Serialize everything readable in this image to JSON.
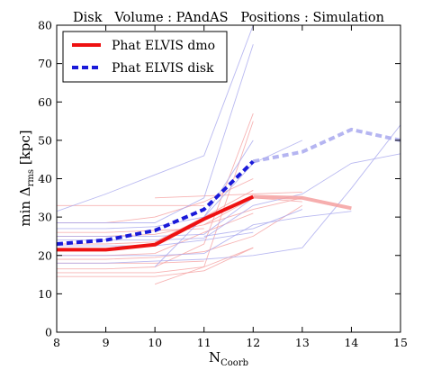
{
  "chart_data": {
    "type": "line",
    "title": "Disk   Volume : PAndAS   Positions : Simulation",
    "xlabel": "N",
    "xlabel_sub": "Coorb",
    "ylabel": "min Δ",
    "ylabel_sub": "rms",
    "ylabel_unit": " [kpc]",
    "xlim": [
      8,
      15
    ],
    "ylim": [
      0,
      80
    ],
    "xticks": [
      8,
      9,
      10,
      11,
      12,
      13,
      14,
      15
    ],
    "yticks": [
      0,
      10,
      20,
      30,
      40,
      50,
      60,
      70,
      80
    ],
    "grid": false,
    "legend_position": "top-left",
    "colors": {
      "dmo": "#ee1111",
      "disk": "#1a1ad9",
      "dmo_faint": "#f5a0a0",
      "disk_faint": "#a8a8ee",
      "axes": "#000000"
    },
    "series": [
      {
        "name": "Phat ELVIS dmo",
        "style": "solid",
        "x": [
          8,
          9,
          10,
          11,
          12,
          13,
          14
        ],
        "y": [
          21.5,
          21.5,
          22.8,
          29.5,
          35.3,
          35.0,
          32.3
        ],
        "strong_until": 12
      },
      {
        "name": "Phat ELVIS disk",
        "style": "dashed",
        "x": [
          8,
          9,
          10,
          11,
          12,
          13,
          14,
          15
        ],
        "y": [
          23.0,
          24.0,
          26.5,
          32.0,
          44.5,
          47.0,
          52.8,
          50.0
        ],
        "strong_until": 12
      }
    ],
    "background_lines": {
      "red": [
        {
          "x": [
            8,
            9,
            10,
            11
          ],
          "y": [
            33,
            33,
            33,
            33
          ]
        },
        {
          "x": [
            8,
            9,
            10,
            11,
            12
          ],
          "y": [
            28.5,
            28.5,
            30,
            34,
            40
          ]
        },
        {
          "x": [
            8,
            9,
            10,
            11
          ],
          "y": [
            26,
            26,
            26.5,
            27
          ]
        },
        {
          "x": [
            8,
            9,
            10,
            11,
            12,
            13
          ],
          "y": [
            25,
            25,
            25.5,
            28,
            32,
            35
          ]
        },
        {
          "x": [
            8,
            9,
            10,
            11,
            12
          ],
          "y": [
            23,
            23,
            23.5,
            30,
            37
          ]
        },
        {
          "x": [
            8,
            9,
            10,
            11,
            12
          ],
          "y": [
            20,
            20,
            20.5,
            26,
            31
          ]
        },
        {
          "x": [
            8,
            9,
            10,
            11,
            12,
            13
          ],
          "y": [
            19,
            19,
            19.5,
            21,
            25,
            33
          ]
        },
        {
          "x": [
            8,
            9,
            10,
            11
          ],
          "y": [
            18,
            18,
            18,
            18.5
          ]
        },
        {
          "x": [
            8,
            9,
            10,
            11,
            12
          ],
          "y": [
            16.5,
            16.5,
            17,
            23,
            57
          ]
        },
        {
          "x": [
            8,
            9,
            10,
            11,
            12
          ],
          "y": [
            15.5,
            15.5,
            15.5,
            17,
            55
          ]
        },
        {
          "x": [
            8,
            9,
            10,
            11,
            12
          ],
          "y": [
            14.5,
            14.5,
            14.5,
            16,
            22
          ]
        },
        {
          "x": [
            10,
            11,
            12
          ],
          "y": [
            12.5,
            17,
            22
          ]
        },
        {
          "x": [
            10,
            11,
            12,
            13
          ],
          "y": [
            35,
            35.5,
            36,
            36.5
          ]
        },
        {
          "x": [
            11,
            12,
            13
          ],
          "y": [
            28,
            35,
            34
          ]
        }
      ],
      "blue": [
        {
          "x": [
            8,
            9,
            10,
            11,
            12
          ],
          "y": [
            31.5,
            36,
            41,
            46,
            80
          ]
        },
        {
          "x": [
            8,
            9,
            10,
            11,
            12
          ],
          "y": [
            28.5,
            28.5,
            28.5,
            35,
            75
          ]
        },
        {
          "x": [
            8,
            9,
            10,
            11,
            12,
            13
          ],
          "y": [
            27,
            27,
            27.5,
            30,
            44,
            50
          ]
        },
        {
          "x": [
            8,
            9,
            10,
            11,
            12
          ],
          "y": [
            25,
            25,
            25,
            25.5,
            35
          ]
        },
        {
          "x": [
            8,
            9,
            10,
            11,
            12,
            13,
            14,
            15
          ],
          "y": [
            24,
            24,
            24,
            24.5,
            33,
            36,
            44,
            46.5
          ]
        },
        {
          "x": [
            8,
            9,
            10,
            11,
            12
          ],
          "y": [
            22.5,
            22.5,
            22.5,
            24,
            26
          ]
        },
        {
          "x": [
            8,
            9,
            10,
            11,
            12,
            13,
            14
          ],
          "y": [
            20,
            20,
            20,
            20.5,
            28,
            30,
            31.5
          ]
        },
        {
          "x": [
            8,
            9,
            10,
            11,
            12,
            13,
            14,
            15
          ],
          "y": [
            18,
            18,
            18.5,
            19,
            20,
            22,
            37.5,
            54
          ]
        },
        {
          "x": [
            10,
            11,
            12
          ],
          "y": [
            17,
            30,
            50
          ]
        },
        {
          "x": [
            11,
            12,
            13
          ],
          "y": [
            25,
            27,
            32
          ]
        }
      ]
    }
  }
}
